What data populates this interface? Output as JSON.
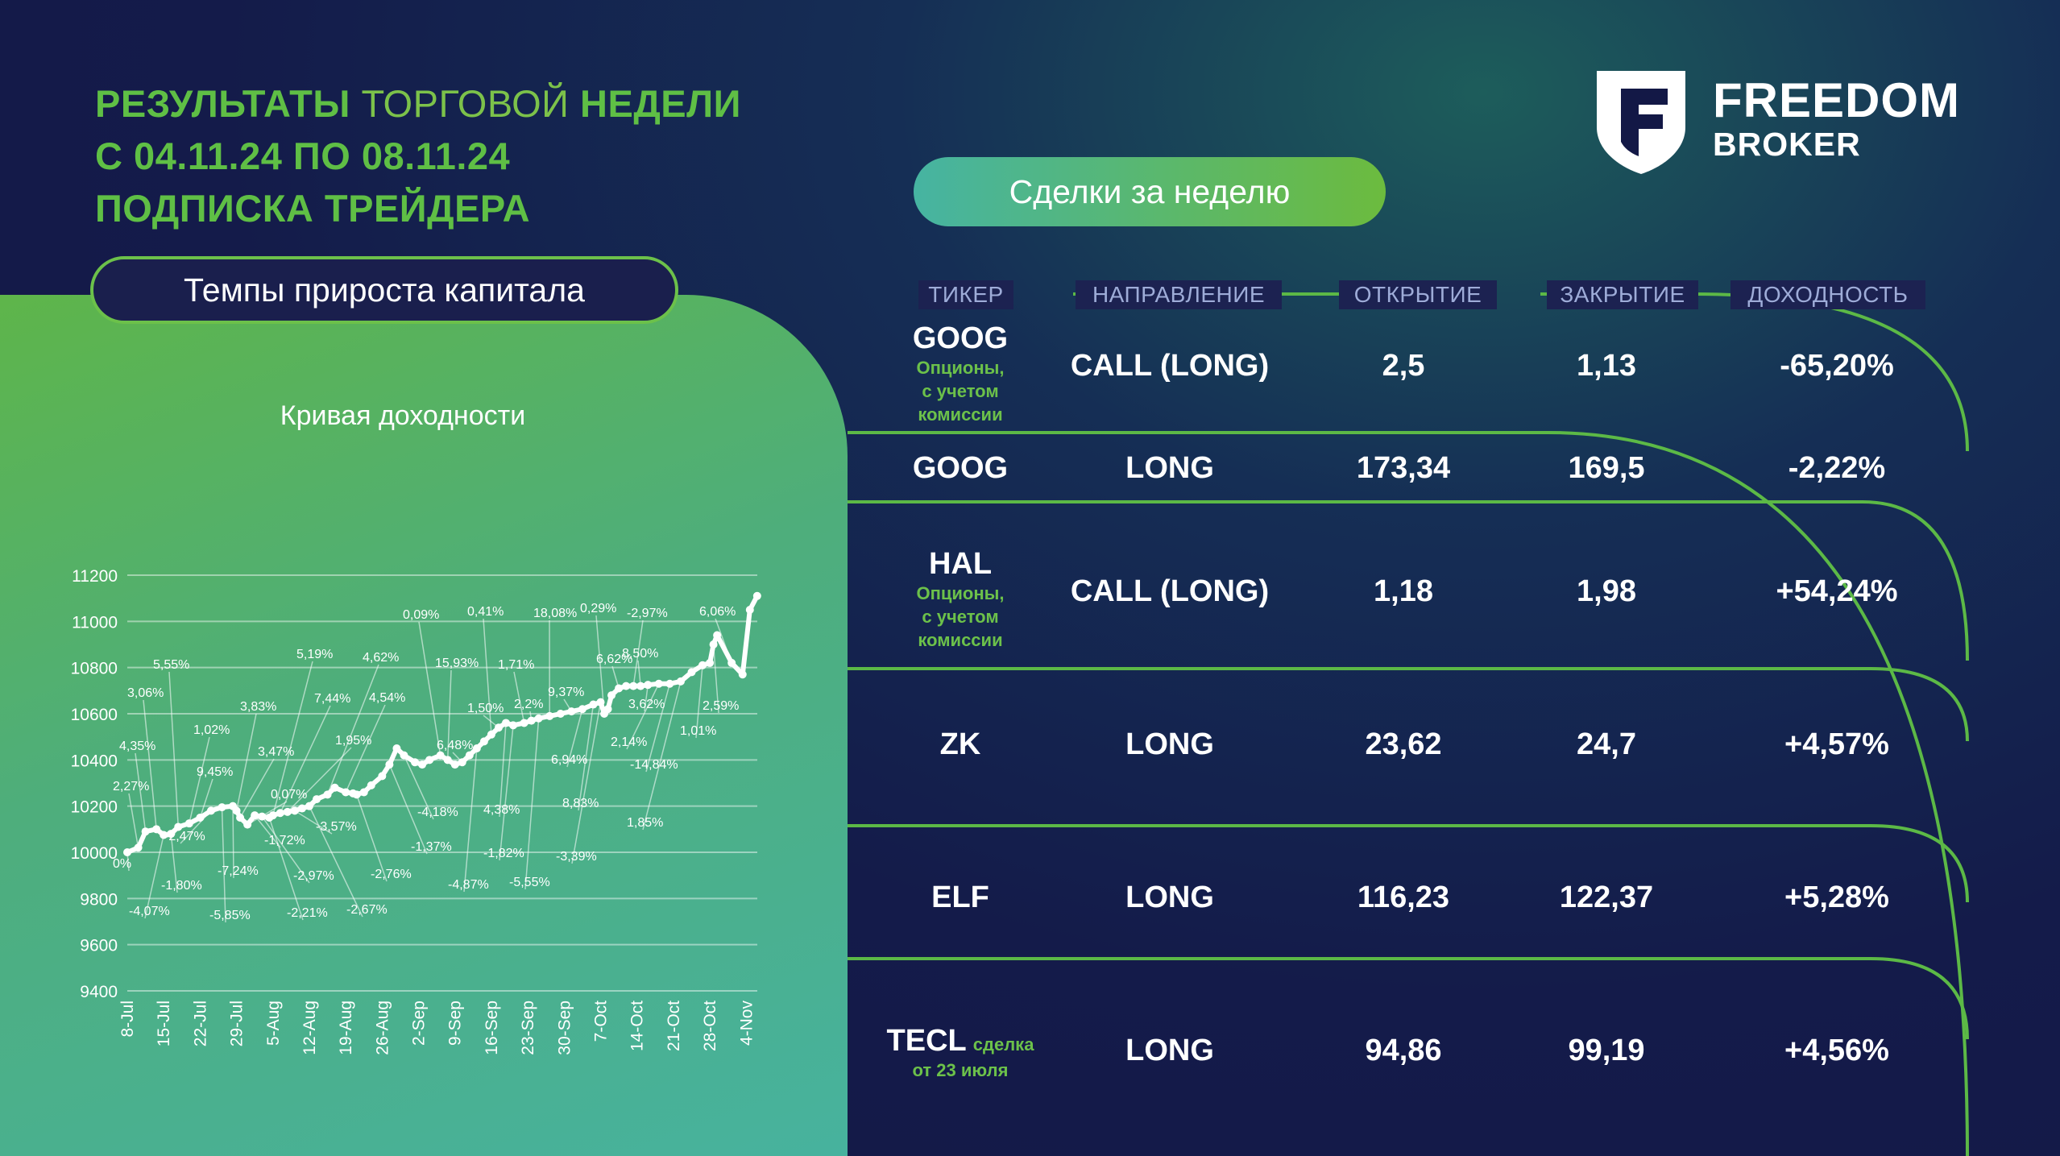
{
  "title": {
    "line1_bold": "РЕЗУЛЬТАТЫ",
    "line1_light": "ТОРГОВОЙ",
    "line1_bold2": "НЕДЕЛИ",
    "line2": "С 04.11.24 ПО 08.11.24",
    "line3": "ПОДПИСКА ТРЕЙДЕРА"
  },
  "brand": {
    "line1": "FREEDOM",
    "line2": "BROKER"
  },
  "capital_label": "Темпы прироста капитала",
  "deals_label": "Сделки за неделю",
  "colors": {
    "accent_green": "#6cc14a",
    "navy": "#141b4a",
    "header_text": "#9eacd8"
  },
  "table": {
    "headers": [
      "ТИКЕР",
      "НАПРАВЛЕНИЕ",
      "ОТКРЫТИЕ",
      "ЗАКРЫТИЕ",
      "ДОХОДНОСТЬ"
    ],
    "rows": [
      {
        "ticker": "GOOG",
        "note": [
          "Опционы,",
          "с учетом",
          "комиссии"
        ],
        "direction": "CALL (LONG)",
        "open": "2,5",
        "close": "1,13",
        "yield": "-65,20%"
      },
      {
        "ticker": "GOOG",
        "note": [],
        "direction": "LONG",
        "open": "173,34",
        "close": "169,5",
        "yield": "-2,22%"
      },
      {
        "ticker": "HAL",
        "note": [
          "Опционы,",
          "с учетом",
          "комиссии"
        ],
        "direction": "CALL (LONG)",
        "open": "1,18",
        "close": "1,98",
        "yield": "+54,24%"
      },
      {
        "ticker": "ZK",
        "note": [],
        "direction": "LONG",
        "open": "23,62",
        "close": "24,7",
        "yield": "+4,57%"
      },
      {
        "ticker": "ELF",
        "note": [],
        "direction": "LONG",
        "open": "116,23",
        "close": "122,37",
        "yield": "+5,28%"
      },
      {
        "ticker": "TECL",
        "inline_note": "сделка",
        "note": [
          "от 23 июля"
        ],
        "direction": "LONG",
        "open": "94,86",
        "close": "99,19",
        "yield": "+4,56%"
      }
    ]
  },
  "chart_data": {
    "type": "line",
    "title": "Кривая доходности",
    "ylim": [
      9400,
      11200
    ],
    "yticks": [
      9400,
      9600,
      9800,
      10000,
      10200,
      10400,
      10600,
      10800,
      11000,
      11200
    ],
    "xticks": [
      "8-Jul",
      "15-Jul",
      "22-Jul",
      "29-Jul",
      "5-Aug",
      "12-Aug",
      "19-Aug",
      "26-Aug",
      "2-Sep",
      "9-Sep",
      "16-Sep",
      "23-Sep",
      "30-Sep",
      "7-Oct",
      "14-Oct",
      "21-Oct",
      "28-Oct",
      "4-Nov"
    ],
    "grid": true,
    "series": [
      {
        "x": [
          0,
          0.3,
          0.5,
          0.8,
          1.0,
          1.2,
          1.4,
          1.7,
          2.0,
          2.3,
          2.6,
          2.9,
          3.0,
          3.1,
          3.3,
          3.5,
          3.7,
          3.9,
          4.0,
          4.2,
          4.4,
          4.6,
          4.8,
          5.0,
          5.2,
          5.5,
          5.7,
          6.0,
          6.2,
          6.3,
          6.5,
          6.7,
          7.0,
          7.2,
          7.4,
          7.6,
          7.9,
          8.1,
          8.3,
          8.6,
          8.8,
          9.0,
          9.2,
          9.4,
          9.6,
          9.8,
          10.0,
          10.2,
          10.4,
          10.6,
          10.9,
          11.1,
          11.3,
          11.6,
          11.9,
          12.2,
          12.5,
          12.8,
          13.0,
          13.1,
          13.2,
          13.3,
          13.5,
          13.7,
          13.9,
          14.1,
          14.3,
          14.6,
          14.9,
          15.2,
          15.5,
          15.8,
          16.0,
          16.1,
          16.2,
          16.6,
          16.9,
          17.1,
          17.3
        ],
        "y": [
          10000,
          10020,
          10090,
          10100,
          10075,
          10080,
          10110,
          10125,
          10150,
          10180,
          10195,
          10200,
          10180,
          10150,
          10120,
          10160,
          10155,
          10150,
          10160,
          10170,
          10175,
          10180,
          10190,
          10200,
          10230,
          10250,
          10280,
          10260,
          10255,
          10250,
          10260,
          10290,
          10330,
          10380,
          10450,
          10420,
          10390,
          10380,
          10400,
          10420,
          10400,
          10380,
          10390,
          10420,
          10450,
          10480,
          10510,
          10540,
          10560,
          10550,
          10560,
          10570,
          10580,
          10590,
          10600,
          10610,
          10620,
          10640,
          10650,
          10600,
          10620,
          10680,
          10710,
          10720,
          10720,
          10720,
          10725,
          10730,
          10730,
          10740,
          10780,
          10810,
          10820,
          10900,
          10940,
          10820,
          10770,
          11050,
          11110
        ]
      }
    ],
    "annotations": [
      "0%",
      "2,27%",
      "4,35%",
      "3,06%",
      "-4,07%",
      "-1,80%",
      "5,55%",
      "1,02%",
      "9,45%",
      "-2,47%",
      "-5,85%",
      "-7,24%",
      "3,83%",
      "3,47%",
      "0,07%",
      "-1,72%",
      "-2,97%",
      "-2,21%",
      "5,19%",
      "7,44%",
      "1,95%",
      "-3,57%",
      "-2,67%",
      "4,62%",
      "4,54%",
      "-2,76%",
      "-1,37%",
      "-4,18%",
      "0,09%",
      "15,93%",
      "6,48%",
      "-4,87%",
      "0,41%",
      "1,50%",
      "4,38%",
      "-1,82%",
      "1,71%",
      "2,2%",
      "-5,55%",
      "18,08%",
      "9,37%",
      "6,94%",
      "8,83%",
      "-3,39%",
      "0,29%",
      "6,62%",
      "-2,97%",
      "8,50%",
      "3,62%",
      "2,14%",
      "-14,84%",
      "1,85%",
      "1,01%",
      "2,59%",
      "6,06%"
    ]
  }
}
